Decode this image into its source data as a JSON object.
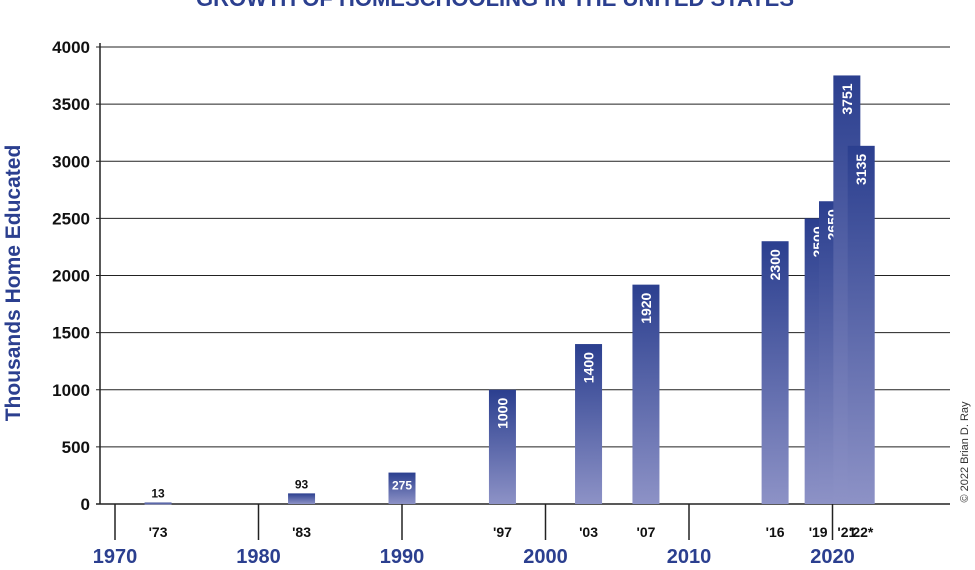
{
  "chart_data": {
    "type": "bar",
    "title": "GROWTH OF HOMESCHOOLING IN THE UNITED STATES",
    "ylabel": "Thousands Home Educated",
    "ylim": [
      0,
      4000
    ],
    "yticks": [
      "0",
      "500",
      "1000",
      "1500",
      "2000",
      "2500",
      "3000",
      "3500",
      "4000"
    ],
    "xlim": [
      1970,
      2023
    ],
    "decade_labels": [
      "1970",
      "1980",
      "1990",
      "2000",
      "2010",
      "2020"
    ],
    "gridlines": true,
    "bars": [
      {
        "year": 1973,
        "label": "'73",
        "value": 13,
        "value_label": "13"
      },
      {
        "year": 1983,
        "label": "'83",
        "value": 93,
        "value_label": "93"
      },
      {
        "year": 1990,
        "label": "",
        "value": 275,
        "value_label": "275"
      },
      {
        "year": 1997,
        "label": "'97",
        "value": 1000,
        "value_label": "1000"
      },
      {
        "year": 2003,
        "label": "'03",
        "value": 1400,
        "value_label": "1400"
      },
      {
        "year": 2007,
        "label": "'07",
        "value": 1920,
        "value_label": "1920"
      },
      {
        "year": 2016,
        "label": "'16",
        "value": 2300,
        "value_label": "2300"
      },
      {
        "year": 2019,
        "label": "'19",
        "value": 2500,
        "value_label": "2500"
      },
      {
        "year": 2020,
        "label": "",
        "value": 2650,
        "value_label": "2650"
      },
      {
        "year": 2021,
        "label": "'21",
        "value": 3751,
        "value_label": "3751"
      },
      {
        "year": 2022,
        "label": "'22*",
        "value": 3135,
        "value_label": "3135"
      }
    ],
    "copyright": "© 2022 Brian D. Ray"
  },
  "colors": {
    "bar_top": "#2b3f8f",
    "bar_bottom": "#8d92c6",
    "title": "#2b3f8f",
    "decade_text": "#2b3f8f",
    "grid": "#222222"
  }
}
